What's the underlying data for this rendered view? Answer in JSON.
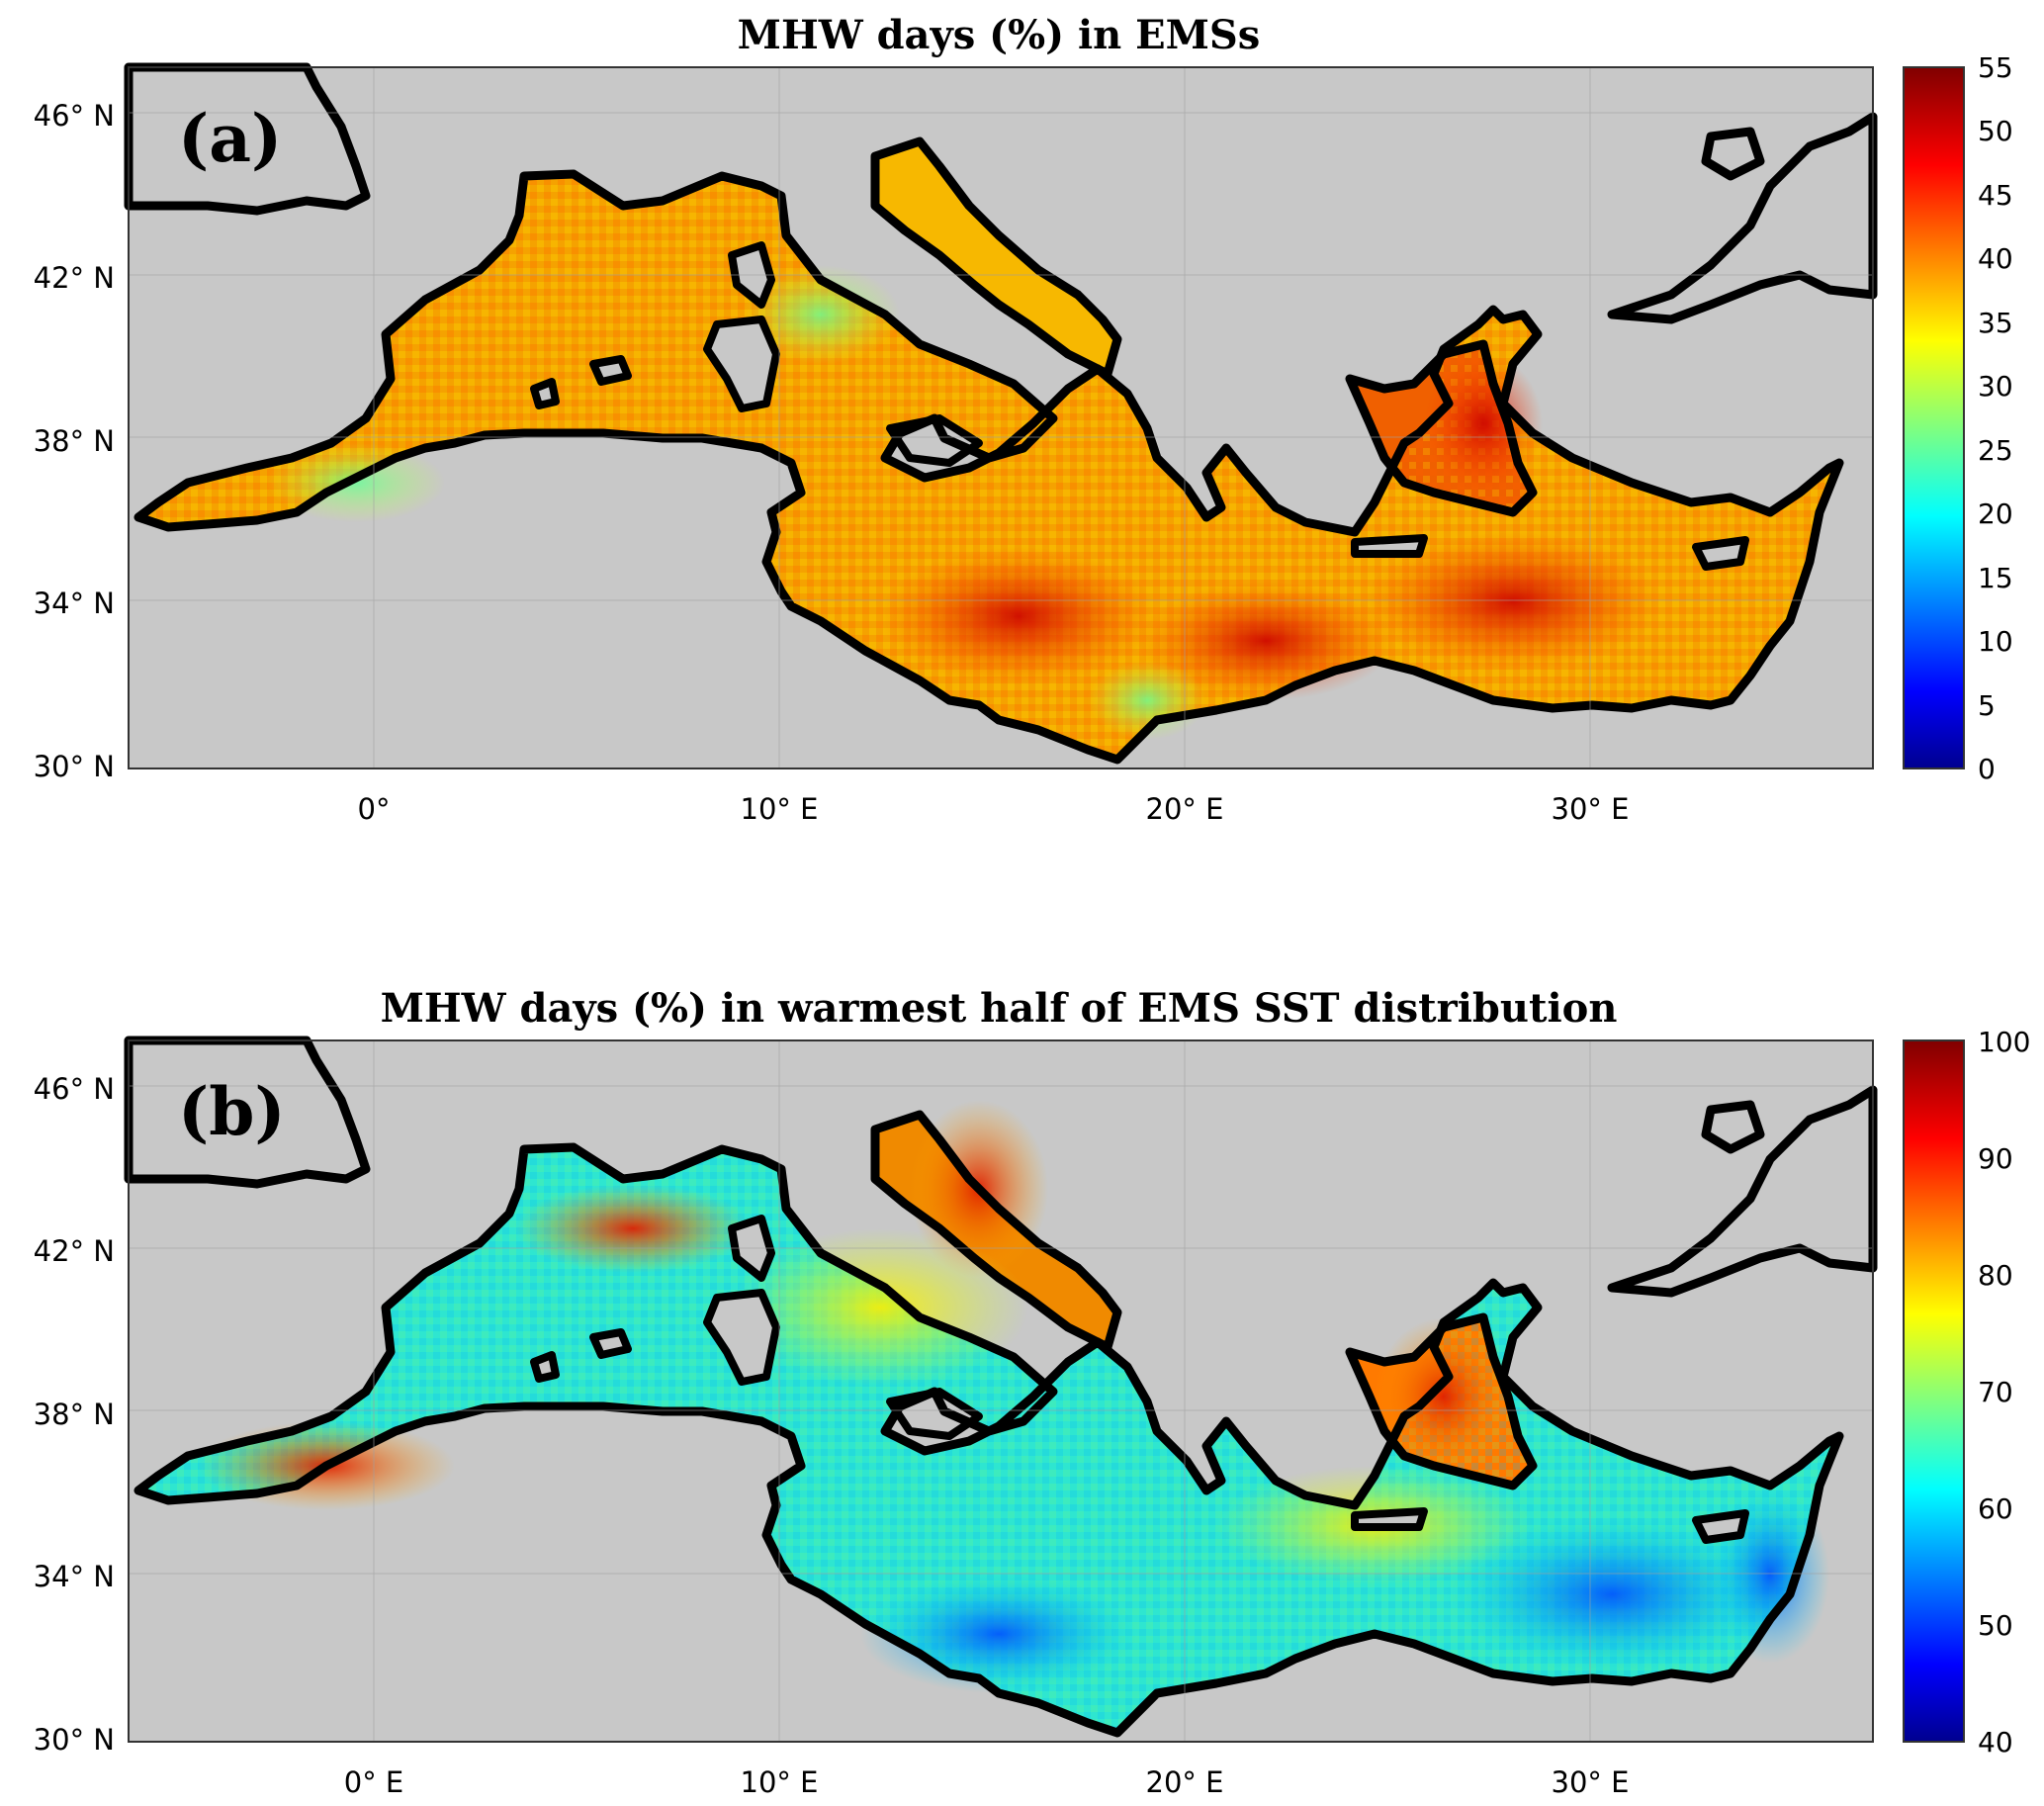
{
  "figure": {
    "panels": [
      {
        "id": "a",
        "title": "MHW days (%) in EMSs",
        "panel_label": "(a)",
        "lat_ticks": [
          "30° N",
          "34° N",
          "38° N",
          "42° N",
          "46° N"
        ],
        "lon_ticks": [
          "0°",
          "10° E",
          "20° E",
          "30° E"
        ],
        "colorbar": {
          "min": 0,
          "max": 55,
          "ticks": [
            "0",
            "5",
            "10",
            "15",
            "20",
            "25",
            "30",
            "35",
            "40",
            "45",
            "50",
            "55"
          ],
          "colormap": "jet"
        },
        "typical_range": "mostly 25–50 %, highest (>45 %) south of Sicily and in the Aegean/Levantine basins"
      },
      {
        "id": "b",
        "title": "MHW days (%) in warmest half of EMS SST distribution",
        "panel_label": "(b)",
        "lat_ticks": [
          "30° N",
          "34° N",
          "38° N",
          "42° N",
          "46° N"
        ],
        "lon_ticks": [
          "0° E",
          "10° E",
          "20° E",
          "30° E"
        ],
        "colorbar": {
          "min": 40,
          "max": 100,
          "ticks": [
            "40",
            "50",
            "60",
            "70",
            "80",
            "90",
            "100"
          ],
          "colormap": "jet"
        },
        "typical_range": "mostly 55–90 %, highest (>85 %) in Adriatic, Gulf of Lion and north Aegean"
      }
    ],
    "colors": {
      "land": "#c8c8c8",
      "coastline": "#000000",
      "grid": "#a0a0a0"
    }
  }
}
